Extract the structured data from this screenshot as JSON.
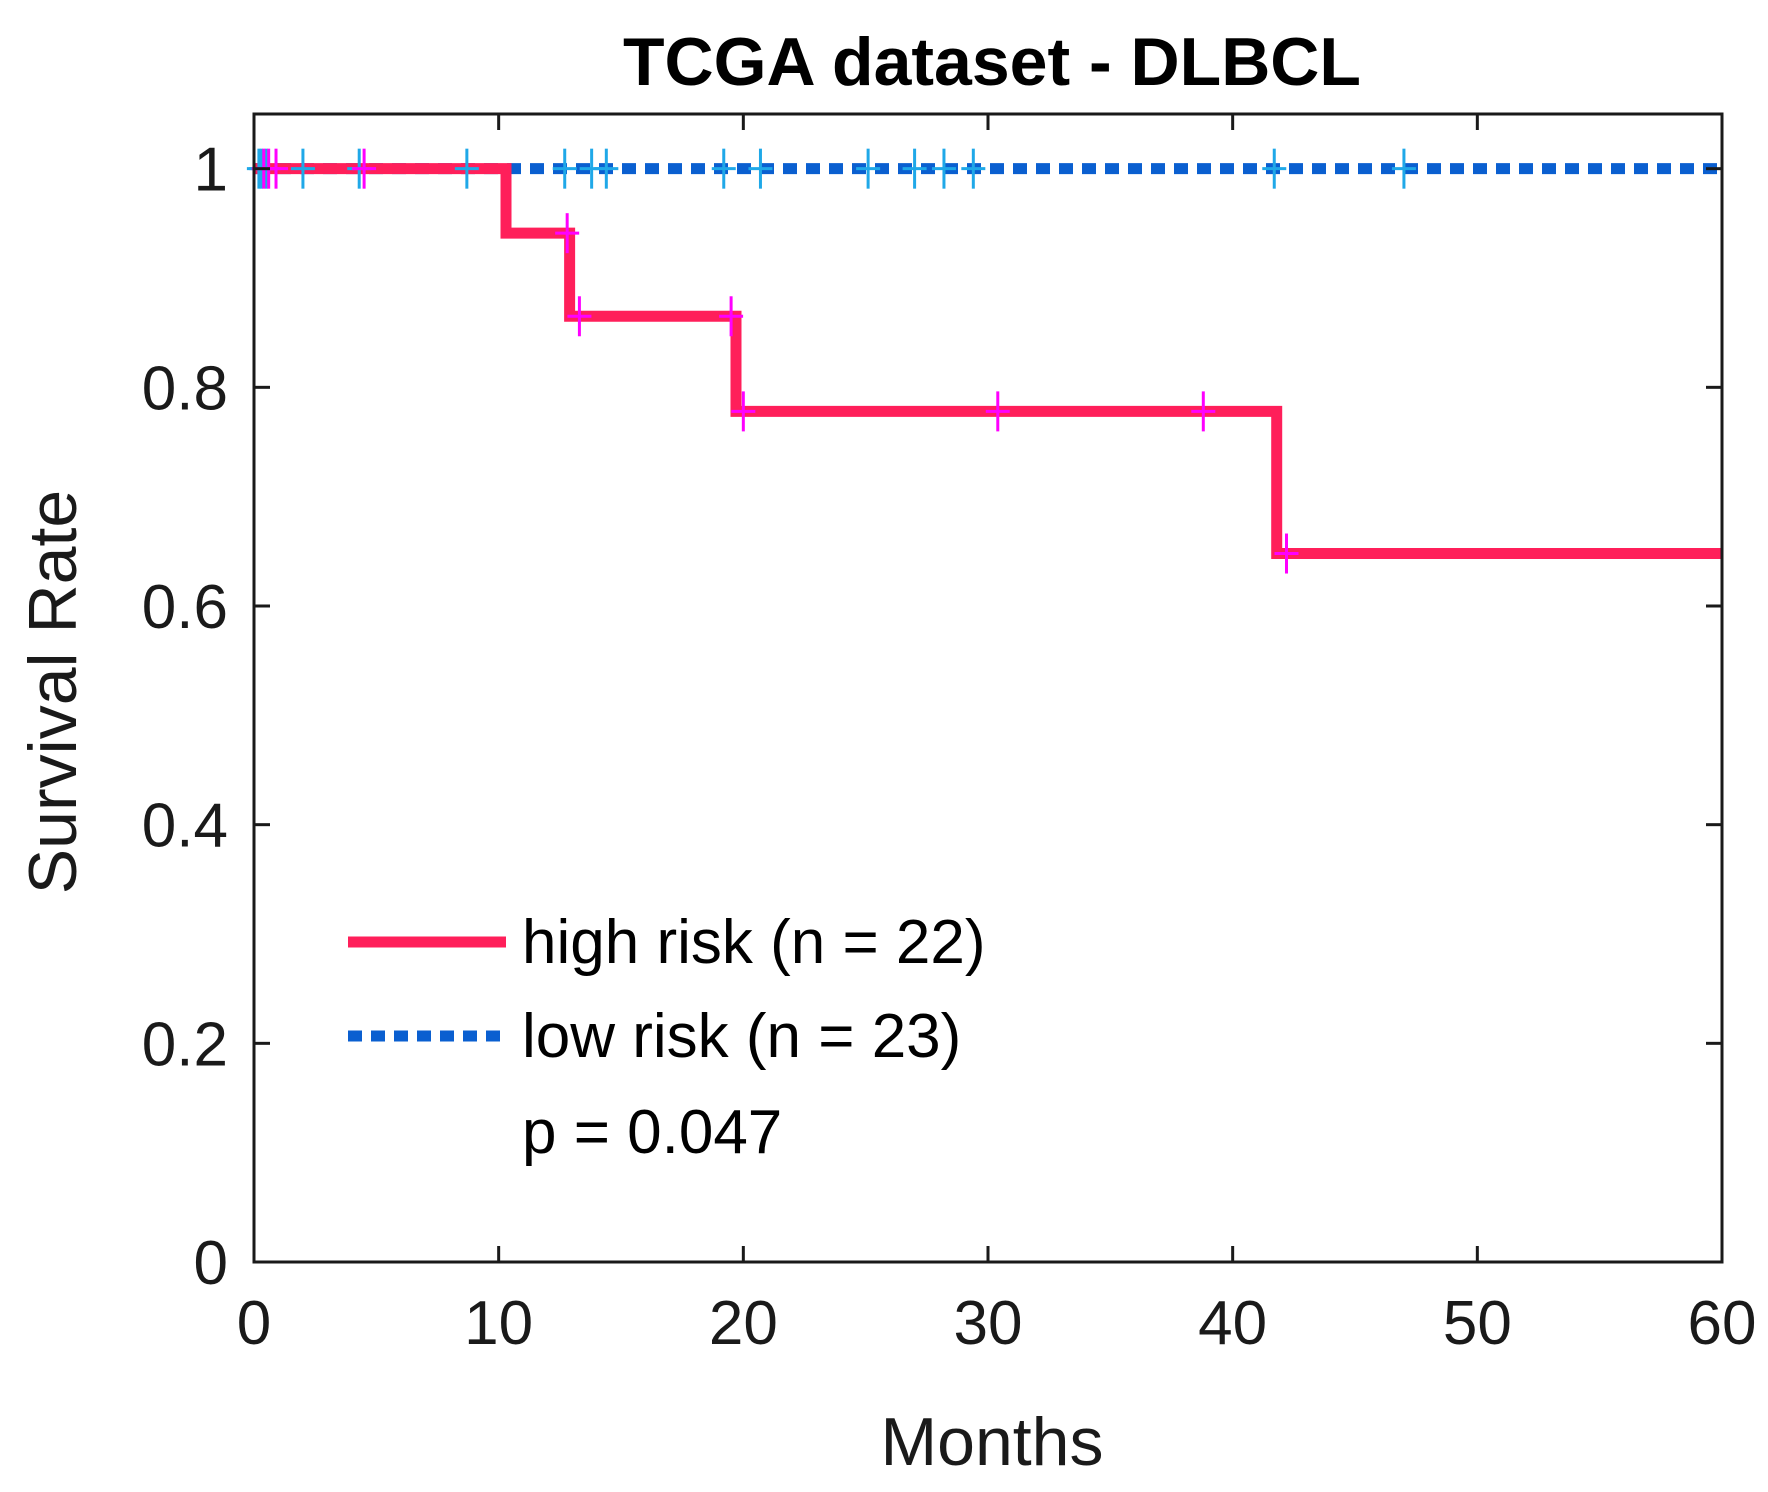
{
  "chart_data": {
    "type": "line",
    "subtype": "kaplan-meier",
    "title": "TCGA dataset - DLBCL",
    "xlabel": "Months",
    "ylabel": "Survival  Rate",
    "xlim": [
      0,
      60
    ],
    "ylim": [
      0,
      1.05
    ],
    "xticks": [
      0,
      10,
      20,
      30,
      40,
      50,
      60
    ],
    "xtick_labels": [
      "0",
      "10",
      "20",
      "30",
      "40",
      "50",
      "60"
    ],
    "yticks": [
      0,
      0.2,
      0.4,
      0.6,
      0.8,
      1
    ],
    "ytick_labels": [
      "0",
      "0.2",
      "0.4",
      "0.6",
      "0.8",
      "1"
    ],
    "grid": false,
    "legend_position": "bottom-left",
    "series": [
      {
        "name": "high risk (n = 22)",
        "color": "#ff1f5a",
        "censor_color": "#ff00ff",
        "line_style": "solid",
        "steps": [
          [
            0,
            1.0
          ],
          [
            10.3,
            0.941
          ],
          [
            12.9,
            0.865
          ],
          [
            19.7,
            0.778
          ],
          [
            41.8,
            0.648
          ],
          [
            60,
            0.648
          ]
        ],
        "censored": [
          [
            0.4,
            1.0
          ],
          [
            0.6,
            1.0
          ],
          [
            0.9,
            1.0
          ],
          [
            4.5,
            1.0
          ],
          [
            12.8,
            0.941
          ],
          [
            13.3,
            0.865
          ],
          [
            19.5,
            0.865
          ],
          [
            20.0,
            0.778
          ],
          [
            30.4,
            0.778
          ],
          [
            38.8,
            0.778
          ],
          [
            42.2,
            0.648
          ]
        ]
      },
      {
        "name": "low risk (n = 23)",
        "color": "#0a5fd0",
        "censor_color": "#1fa8e8",
        "line_style": "dotted",
        "steps": [
          [
            0,
            1.0
          ],
          [
            60,
            1.0
          ]
        ],
        "censored": [
          [
            0.2,
            1.0
          ],
          [
            0.3,
            1.0
          ],
          [
            0.5,
            1.0
          ],
          [
            2.0,
            1.0
          ],
          [
            4.3,
            1.0
          ],
          [
            8.7,
            1.0
          ],
          [
            12.7,
            1.0
          ],
          [
            13.8,
            1.0
          ],
          [
            14.4,
            1.0
          ],
          [
            19.2,
            1.0
          ],
          [
            20.7,
            1.0
          ],
          [
            25.1,
            1.0
          ],
          [
            27.0,
            1.0
          ],
          [
            28.2,
            1.0
          ],
          [
            29.4,
            1.0
          ],
          [
            41.7,
            1.0
          ],
          [
            47.0,
            1.0
          ]
        ]
      }
    ],
    "annotations": [
      "p = 0.047"
    ]
  }
}
